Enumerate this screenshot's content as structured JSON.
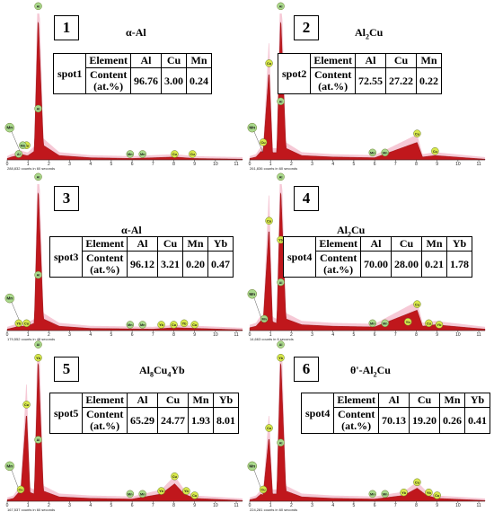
{
  "chart_data": [
    {
      "type": "area",
      "panel_number": "1",
      "phase_label": "α-Al",
      "phase_parts": [
        {
          "t": "α-Al",
          "sub": false
        }
      ],
      "counts_label": "288,832 counts in 60 seconds",
      "x_ticks": [
        "0",
        "1",
        "2",
        "3",
        "4",
        "5",
        "6",
        "7",
        "8",
        "9",
        "10",
        "11"
      ],
      "xlim": [
        0,
        11.3
      ],
      "spectrum": [
        [
          0,
          0.01
        ],
        [
          0.2,
          0.02
        ],
        [
          0.5,
          0.03
        ],
        [
          0.64,
          0.04
        ],
        [
          0.93,
          0.03
        ],
        [
          1.0,
          0.03
        ],
        [
          1.3,
          0.06
        ],
        [
          1.487,
          1.0
        ],
        [
          1.74,
          0.1
        ],
        [
          2.5,
          0.03
        ],
        [
          4,
          0.015
        ],
        [
          6,
          0.01
        ],
        [
          8.04,
          0.02
        ],
        [
          9,
          0.01
        ],
        [
          11.3,
          0.005
        ]
      ],
      "peak_labels": [
        {
          "el": "Al",
          "x": 1.49,
          "y": 1.05
        },
        {
          "el": "Al",
          "x": 1.49,
          "y": 0.35
        },
        {
          "el": "Mn",
          "x": 0.12,
          "y": 0.22
        },
        {
          "el": "Cu",
          "x": 0.93,
          "y": 0.1
        },
        {
          "el": "Al",
          "x": 0.55,
          "y": 0.04
        },
        {
          "el": "Mn",
          "x": 0.75,
          "y": 0.1
        },
        {
          "el": "Mn",
          "x": 5.9,
          "y": 0.04
        },
        {
          "el": "Mn",
          "x": 6.5,
          "y": 0.04
        },
        {
          "el": "Cu",
          "x": 8.04,
          "y": 0.04
        },
        {
          "el": "Cu",
          "x": 8.9,
          "y": 0.04
        }
      ],
      "table": {
        "spot": "spot1",
        "header": [
          "Element",
          "Al",
          "Cu",
          "Mn"
        ],
        "row_label": "Content (at.%)",
        "values": [
          "96.76",
          "3.00",
          "0.24"
        ]
      }
    },
    {
      "type": "area",
      "panel_number": "2",
      "phase_label": "Al2Cu",
      "phase_parts": [
        {
          "t": "Al",
          "sub": false
        },
        {
          "t": "2",
          "sub": true
        },
        {
          "t": "Cu",
          "sub": false
        }
      ],
      "counts_label": "261,836 counts in 60 seconds",
      "x_ticks": [
        "0",
        "1",
        "2",
        "3",
        "4",
        "5",
        "6",
        "7",
        "8",
        "9",
        "10",
        "11"
      ],
      "xlim": [
        0,
        11.3
      ],
      "spectrum": [
        [
          0,
          0.01
        ],
        [
          0.3,
          0.02
        ],
        [
          0.55,
          0.06
        ],
        [
          0.64,
          0.05
        ],
        [
          0.93,
          0.62
        ],
        [
          1.1,
          0.05
        ],
        [
          1.3,
          0.05
        ],
        [
          1.487,
          1.0
        ],
        [
          1.74,
          0.08
        ],
        [
          2.5,
          0.03
        ],
        [
          4,
          0.02
        ],
        [
          6,
          0.015
        ],
        [
          8.04,
          0.12
        ],
        [
          8.3,
          0.02
        ],
        [
          8.9,
          0.03
        ],
        [
          11.3,
          0.005
        ]
      ],
      "peak_labels": [
        {
          "el": "Al",
          "x": 1.49,
          "y": 1.05
        },
        {
          "el": "Cu",
          "x": 0.93,
          "y": 0.66
        },
        {
          "el": "Al",
          "x": 1.49,
          "y": 0.4
        },
        {
          "el": "Mn",
          "x": 0.12,
          "y": 0.22
        },
        {
          "el": "Cu",
          "x": 0.65,
          "y": 0.12
        },
        {
          "el": "Mn",
          "x": 5.9,
          "y": 0.05
        },
        {
          "el": "Mn",
          "x": 6.5,
          "y": 0.05
        },
        {
          "el": "Cu",
          "x": 8.04,
          "y": 0.18
        },
        {
          "el": "Cu",
          "x": 8.9,
          "y": 0.06
        }
      ],
      "table": {
        "spot": "spot2",
        "header": [
          "Element",
          "Al",
          "Cu",
          "Mn"
        ],
        "row_label": "Content (at.%)",
        "values": [
          "72.55",
          "27.22",
          "0.22"
        ]
      }
    },
    {
      "type": "area",
      "panel_number": "3",
      "phase_label": "α-Al",
      "phase_parts": [
        {
          "t": "α-Al",
          "sub": false
        }
      ],
      "counts_label": "179,552 counts in 48 seconds",
      "x_ticks": [
        "0",
        "1",
        "2",
        "3",
        "4",
        "5",
        "6",
        "7",
        "8",
        "9",
        "10",
        "11"
      ],
      "xlim": [
        0,
        11.3
      ],
      "spectrum": [
        [
          0,
          0.01
        ],
        [
          0.3,
          0.02
        ],
        [
          0.55,
          0.03
        ],
        [
          0.64,
          0.03
        ],
        [
          0.93,
          0.03
        ],
        [
          1.3,
          0.05
        ],
        [
          1.487,
          1.0
        ],
        [
          1.74,
          0.08
        ],
        [
          2.5,
          0.03
        ],
        [
          4,
          0.015
        ],
        [
          7,
          0.01
        ],
        [
          8.04,
          0.02
        ],
        [
          11.3,
          0.005
        ]
      ],
      "peak_labels": [
        {
          "el": "Al",
          "x": 1.49,
          "y": 1.05
        },
        {
          "el": "Al",
          "x": 1.49,
          "y": 0.38
        },
        {
          "el": "Mn",
          "x": 0.12,
          "y": 0.22
        },
        {
          "el": "Yb",
          "x": 0.55,
          "y": 0.05
        },
        {
          "el": "Cu",
          "x": 0.93,
          "y": 0.05
        },
        {
          "el": "Mn",
          "x": 5.9,
          "y": 0.04
        },
        {
          "el": "Mn",
          "x": 6.5,
          "y": 0.04
        },
        {
          "el": "Yb",
          "x": 7.4,
          "y": 0.04
        },
        {
          "el": "Cu",
          "x": 8.0,
          "y": 0.04
        },
        {
          "el": "Yb",
          "x": 8.5,
          "y": 0.05
        },
        {
          "el": "Cu",
          "x": 9.0,
          "y": 0.04
        }
      ],
      "table": {
        "spot": "spot3",
        "header": [
          "Element",
          "Al",
          "Cu",
          "Mn",
          "Yb"
        ],
        "row_label": "Content (at.%)",
        "values": [
          "96.12",
          "3.21",
          "0.20",
          "0.47"
        ]
      }
    },
    {
      "type": "area",
      "panel_number": "4",
      "phase_label": "Al2Cu",
      "phase_parts": [
        {
          "t": "Al",
          "sub": false
        },
        {
          "t": "2",
          "sub": true
        },
        {
          "t": "Cu",
          "sub": false
        }
      ],
      "counts_label": "14,663 counts in 6 seconds",
      "x_ticks": [
        "0",
        "1",
        "2",
        "3",
        "4",
        "5",
        "6",
        "7",
        "8",
        "9",
        "10",
        "11"
      ],
      "xlim": [
        0,
        11.3
      ],
      "spectrum": [
        [
          0,
          0.02
        ],
        [
          0.3,
          0.03
        ],
        [
          0.55,
          0.07
        ],
        [
          0.64,
          0.05
        ],
        [
          0.93,
          0.72
        ],
        [
          1.1,
          0.06
        ],
        [
          1.3,
          0.05
        ],
        [
          1.487,
          1.0
        ],
        [
          1.74,
          0.08
        ],
        [
          2.5,
          0.04
        ],
        [
          4,
          0.03
        ],
        [
          6,
          0.025
        ],
        [
          8.04,
          0.14
        ],
        [
          8.3,
          0.03
        ],
        [
          8.9,
          0.04
        ],
        [
          11.3,
          0.01
        ]
      ],
      "peak_labels": [
        {
          "el": "Al",
          "x": 1.49,
          "y": 1.05
        },
        {
          "el": "Cu",
          "x": 0.93,
          "y": 0.75
        },
        {
          "el": "Yb",
          "x": 1.49,
          "y": 0.62
        },
        {
          "el": "Al",
          "x": 1.49,
          "y": 0.33
        },
        {
          "el": "Mn",
          "x": 0.12,
          "y": 0.25
        },
        {
          "el": "Mn",
          "x": 0.7,
          "y": 0.08
        },
        {
          "el": "Mn",
          "x": 5.9,
          "y": 0.05
        },
        {
          "el": "Mn",
          "x": 6.5,
          "y": 0.05
        },
        {
          "el": "Cu",
          "x": 8.04,
          "y": 0.18
        },
        {
          "el": "Yb",
          "x": 7.6,
          "y": 0.06
        },
        {
          "el": "Cu",
          "x": 8.6,
          "y": 0.05
        },
        {
          "el": "Yb",
          "x": 9.1,
          "y": 0.04
        }
      ],
      "table": {
        "spot": "spot4",
        "header": [
          "Element",
          "Al",
          "Cu",
          "Mn",
          "Yb"
        ],
        "row_label": "Content (at.%)",
        "values": [
          "70.00",
          "28.00",
          "0.21",
          "1.78"
        ]
      }
    },
    {
      "type": "area",
      "panel_number": "5",
      "phase_label": "Al8Cu4Yb",
      "phase_parts": [
        {
          "t": "Al",
          "sub": false
        },
        {
          "t": "8",
          "sub": true
        },
        {
          "t": "Cu",
          "sub": false
        },
        {
          "t": "4",
          "sub": true
        },
        {
          "t": "Yb",
          "sub": false
        }
      ],
      "counts_label": "167,537 counts in 60 seconds",
      "x_ticks": [
        "0",
        "1",
        "2",
        "3",
        "4",
        "5",
        "6",
        "7",
        "8",
        "9",
        "10",
        "11"
      ],
      "xlim": [
        0,
        11.3
      ],
      "spectrum": [
        [
          0,
          0.01
        ],
        [
          0.3,
          0.02
        ],
        [
          0.55,
          0.06
        ],
        [
          0.64,
          0.05
        ],
        [
          0.93,
          0.62
        ],
        [
          1.1,
          0.06
        ],
        [
          1.3,
          0.05
        ],
        [
          1.487,
          1.0
        ],
        [
          1.74,
          0.07
        ],
        [
          2.5,
          0.03
        ],
        [
          4,
          0.02
        ],
        [
          6,
          0.015
        ],
        [
          7.4,
          0.05
        ],
        [
          8.04,
          0.12
        ],
        [
          8.5,
          0.05
        ],
        [
          9,
          0.02
        ],
        [
          11.3,
          0.005
        ]
      ],
      "peak_labels": [
        {
          "el": "Al",
          "x": 1.49,
          "y": 1.07
        },
        {
          "el": "Yb",
          "x": 1.49,
          "y": 0.98
        },
        {
          "el": "Cu",
          "x": 0.93,
          "y": 0.66
        },
        {
          "el": "Al",
          "x": 1.49,
          "y": 0.42
        },
        {
          "el": "Mn",
          "x": 0.12,
          "y": 0.24
        },
        {
          "el": "Cu",
          "x": 0.65,
          "y": 0.08
        },
        {
          "el": "Mn",
          "x": 5.9,
          "y": 0.05
        },
        {
          "el": "Mn",
          "x": 6.5,
          "y": 0.05
        },
        {
          "el": "Yb",
          "x": 7.4,
          "y": 0.07
        },
        {
          "el": "Cu",
          "x": 8.04,
          "y": 0.17
        },
        {
          "el": "Yb",
          "x": 8.6,
          "y": 0.07
        },
        {
          "el": "Cu",
          "x": 9.0,
          "y": 0.04
        }
      ],
      "table": {
        "spot": "spot5",
        "header": [
          "Element",
          "Al",
          "Cu",
          "Mn",
          "Yb"
        ],
        "row_label": "Content (at.%)",
        "values": [
          "65.29",
          "24.77",
          "1.93",
          "8.01"
        ]
      }
    },
    {
      "type": "area",
      "panel_number": "6",
      "phase_label": "θ'-Al2Cu",
      "phase_parts": [
        {
          "t": "θ'-Al",
          "sub": false
        },
        {
          "t": "2",
          "sub": true
        },
        {
          "t": "Cu",
          "sub": false
        }
      ],
      "counts_label": "224,281 counts in 60 seconds",
      "x_ticks": [
        "0",
        "1",
        "2",
        "3",
        "4",
        "5",
        "6",
        "7",
        "8",
        "9",
        "10",
        "11"
      ],
      "xlim": [
        0,
        11.3
      ],
      "spectrum": [
        [
          0,
          0.01
        ],
        [
          0.3,
          0.02
        ],
        [
          0.55,
          0.05
        ],
        [
          0.64,
          0.04
        ],
        [
          0.93,
          0.45
        ],
        [
          1.1,
          0.05
        ],
        [
          1.3,
          0.05
        ],
        [
          1.487,
          1.0
        ],
        [
          1.74,
          0.07
        ],
        [
          2.5,
          0.03
        ],
        [
          4,
          0.02
        ],
        [
          6,
          0.015
        ],
        [
          7.4,
          0.04
        ],
        [
          8.04,
          0.09
        ],
        [
          8.5,
          0.04
        ],
        [
          9,
          0.02
        ],
        [
          11.3,
          0.005
        ]
      ],
      "peak_labels": [
        {
          "el": "Al",
          "x": 1.49,
          "y": 1.07
        },
        {
          "el": "Yb",
          "x": 1.49,
          "y": 0.98
        },
        {
          "el": "Cu",
          "x": 0.93,
          "y": 0.5
        },
        {
          "el": "Al",
          "x": 1.49,
          "y": 0.4
        },
        {
          "el": "Mn",
          "x": 0.12,
          "y": 0.24
        },
        {
          "el": "Cu",
          "x": 0.65,
          "y": 0.08
        },
        {
          "el": "Mn",
          "x": 5.9,
          "y": 0.05
        },
        {
          "el": "Mn",
          "x": 6.5,
          "y": 0.05
        },
        {
          "el": "Yb",
          "x": 7.4,
          "y": 0.06
        },
        {
          "el": "Cu",
          "x": 8.04,
          "y": 0.13
        },
        {
          "el": "Yb",
          "x": 8.6,
          "y": 0.06
        },
        {
          "el": "Cu",
          "x": 9.0,
          "y": 0.04
        }
      ],
      "table": {
        "spot": "spot4",
        "header": [
          "Element",
          "Al",
          "Cu",
          "Mn",
          "Yb"
        ],
        "row_label": "Content (at.%)",
        "values": [
          "70.13",
          "19.20",
          "0.26",
          "0.41"
        ]
      }
    }
  ],
  "colors": {
    "spectrum_fill": "#c0171c",
    "spectrum_glow": "#f3b7c8",
    "marker_cu_yb": "#d8e84a",
    "marker_al_mn": "#a9d98c",
    "marker_stroke": "#6a7d2c"
  }
}
